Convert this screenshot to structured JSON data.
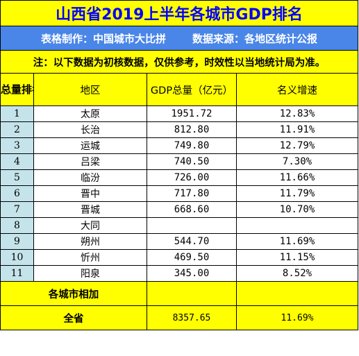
{
  "title": "山西省2019上半年各城市GDP排名",
  "credit": {
    "maker": "表格制作：中国城市大比拼",
    "source": "数据来源：各地区统计公报"
  },
  "note": "注：以下数据为初核数据，仅供参考，时效性以当地统计局为准。",
  "headers": {
    "rank": "总量排名",
    "region": "地区",
    "gdp": "GDP总量（亿元）",
    "growth": "名义增速"
  },
  "rows": [
    {
      "rank": "1",
      "region": "太原",
      "gdp": "1951.72",
      "growth": "12.83%"
    },
    {
      "rank": "2",
      "region": "长治",
      "gdp": "812.80",
      "growth": "11.91%"
    },
    {
      "rank": "3",
      "region": "运城",
      "gdp": "749.80",
      "growth": "12.79%"
    },
    {
      "rank": "4",
      "region": "吕梁",
      "gdp": "740.50",
      "growth": "7.30%"
    },
    {
      "rank": "5",
      "region": "临汾",
      "gdp": "726.00",
      "growth": "11.66%"
    },
    {
      "rank": "6",
      "region": "晋中",
      "gdp": "717.80",
      "growth": "11.79%"
    },
    {
      "rank": "7",
      "region": "晋城",
      "gdp": "668.60",
      "growth": "10.70%"
    },
    {
      "rank": "8",
      "region": "大同",
      "gdp": "",
      "growth": ""
    },
    {
      "rank": "9",
      "region": "朔州",
      "gdp": "544.70",
      "growth": "11.69%"
    },
    {
      "rank": "10",
      "region": "忻州",
      "gdp": "469.50",
      "growth": "11.15%"
    },
    {
      "rank": "11",
      "region": "阳泉",
      "gdp": "345.00",
      "growth": "8.52%"
    }
  ],
  "sum_row": {
    "label": "各城市相加",
    "gdp": "",
    "growth": ""
  },
  "total_row": {
    "label": "全省",
    "gdp": "8357.65",
    "growth": "11.69%"
  }
}
